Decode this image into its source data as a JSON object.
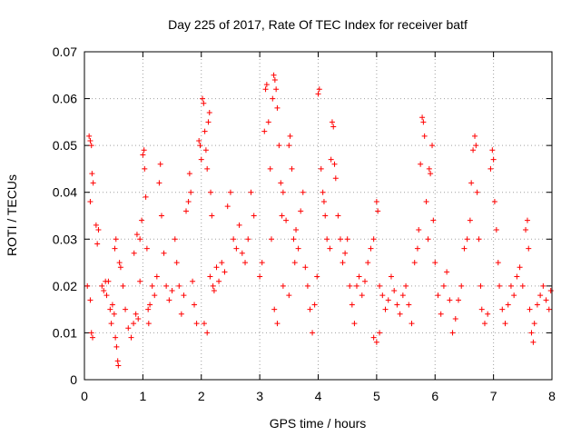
{
  "chart_data": {
    "type": "scatter",
    "title": "Day 225 of 2017, Rate Of TEC Index for receiver batf",
    "xlabel": "GPS time / hours",
    "ylabel": "ROTI / TECUs",
    "xlim": [
      0,
      8
    ],
    "ylim": [
      0,
      0.07
    ],
    "x_ticks": [
      "0",
      "1",
      "2",
      "3",
      "4",
      "5",
      "6",
      "7",
      "8"
    ],
    "y_ticks": [
      "0",
      "0.01",
      "0.02",
      "0.03",
      "0.04",
      "0.05",
      "0.06",
      "0.07"
    ],
    "grid": true,
    "marker": "plus",
    "color": "#ff0000",
    "series": [
      {
        "points": [
          [
            0.08,
            0.052
          ],
          [
            0.1,
            0.051
          ],
          [
            0.12,
            0.05
          ],
          [
            0.13,
            0.044
          ],
          [
            0.15,
            0.042
          ],
          [
            0.05,
            0.02
          ],
          [
            0.1,
            0.017
          ],
          [
            0.12,
            0.01
          ],
          [
            0.14,
            0.009
          ],
          [
            0.2,
            0.033
          ],
          [
            0.22,
            0.029
          ],
          [
            0.24,
            0.032
          ],
          [
            0.1,
            0.038
          ],
          [
            0.3,
            0.02
          ],
          [
            0.33,
            0.019
          ],
          [
            0.36,
            0.021
          ],
          [
            0.38,
            0.018
          ],
          [
            0.41,
            0.021
          ],
          [
            0.44,
            0.015
          ],
          [
            0.46,
            0.012
          ],
          [
            0.48,
            0.016
          ],
          [
            0.51,
            0.014
          ],
          [
            0.53,
            0.009
          ],
          [
            0.55,
            0.007
          ],
          [
            0.57,
            0.004
          ],
          [
            0.58,
            0.003
          ],
          [
            0.52,
            0.028
          ],
          [
            0.54,
            0.03
          ],
          [
            0.6,
            0.025
          ],
          [
            0.62,
            0.024
          ],
          [
            0.66,
            0.02
          ],
          [
            0.7,
            0.015
          ],
          [
            0.75,
            0.011
          ],
          [
            0.8,
            0.009
          ],
          [
            0.84,
            0.012
          ],
          [
            0.88,
            0.014
          ],
          [
            0.92,
            0.013
          ],
          [
            0.95,
            0.021
          ],
          [
            0.98,
            0.034
          ],
          [
            1.0,
            0.048
          ],
          [
            1.02,
            0.049
          ],
          [
            1.03,
            0.045
          ],
          [
            1.05,
            0.039
          ],
          [
            1.07,
            0.028
          ],
          [
            1.09,
            0.015
          ],
          [
            1.1,
            0.012
          ],
          [
            0.85,
            0.027
          ],
          [
            0.9,
            0.031
          ],
          [
            0.95,
            0.03
          ],
          [
            1.12,
            0.016
          ],
          [
            1.16,
            0.02
          ],
          [
            1.2,
            0.018
          ],
          [
            1.24,
            0.022
          ],
          [
            1.28,
            0.042
          ],
          [
            1.3,
            0.046
          ],
          [
            1.32,
            0.035
          ],
          [
            1.36,
            0.027
          ],
          [
            1.4,
            0.02
          ],
          [
            1.45,
            0.017
          ],
          [
            1.5,
            0.019
          ],
          [
            1.55,
            0.03
          ],
          [
            1.58,
            0.025
          ],
          [
            1.62,
            0.02
          ],
          [
            1.66,
            0.014
          ],
          [
            1.7,
            0.018
          ],
          [
            1.74,
            0.036
          ],
          [
            1.78,
            0.038
          ],
          [
            1.8,
            0.044
          ],
          [
            1.82,
            0.04
          ],
          [
            1.85,
            0.021
          ],
          [
            1.88,
            0.016
          ],
          [
            1.92,
            0.012
          ],
          [
            1.96,
            0.051
          ],
          [
            1.98,
            0.05
          ],
          [
            2.0,
            0.047
          ],
          [
            2.02,
            0.06
          ],
          [
            2.04,
            0.059
          ],
          [
            2.06,
            0.053
          ],
          [
            2.08,
            0.049
          ],
          [
            2.1,
            0.045
          ],
          [
            2.12,
            0.055
          ],
          [
            2.14,
            0.057
          ],
          [
            2.16,
            0.04
          ],
          [
            2.18,
            0.035
          ],
          [
            2.2,
            0.02
          ],
          [
            2.05,
            0.012
          ],
          [
            2.1,
            0.01
          ],
          [
            2.15,
            0.022
          ],
          [
            2.22,
            0.019
          ],
          [
            2.26,
            0.024
          ],
          [
            2.3,
            0.021
          ],
          [
            2.35,
            0.025
          ],
          [
            2.4,
            0.023
          ],
          [
            2.45,
            0.037
          ],
          [
            2.5,
            0.04
          ],
          [
            2.55,
            0.03
          ],
          [
            2.6,
            0.028
          ],
          [
            2.65,
            0.033
          ],
          [
            2.7,
            0.027
          ],
          [
            2.75,
            0.025
          ],
          [
            2.8,
            0.03
          ],
          [
            2.85,
            0.04
          ],
          [
            2.9,
            0.035
          ],
          [
            3.0,
            0.022
          ],
          [
            3.04,
            0.025
          ],
          [
            3.08,
            0.053
          ],
          [
            3.1,
            0.062
          ],
          [
            3.12,
            0.063
          ],
          [
            3.15,
            0.055
          ],
          [
            3.18,
            0.045
          ],
          [
            3.2,
            0.03
          ],
          [
            3.22,
            0.06
          ],
          [
            3.24,
            0.065
          ],
          [
            3.26,
            0.064
          ],
          [
            3.28,
            0.062
          ],
          [
            3.3,
            0.058
          ],
          [
            3.33,
            0.05
          ],
          [
            3.36,
            0.042
          ],
          [
            3.38,
            0.035
          ],
          [
            3.4,
            0.04
          ],
          [
            3.45,
            0.034
          ],
          [
            3.5,
            0.05
          ],
          [
            3.52,
            0.052
          ],
          [
            3.55,
            0.045
          ],
          [
            3.58,
            0.03
          ],
          [
            3.6,
            0.025
          ],
          [
            3.25,
            0.015
          ],
          [
            3.3,
            0.012
          ],
          [
            3.4,
            0.02
          ],
          [
            3.5,
            0.018
          ],
          [
            3.62,
            0.032
          ],
          [
            3.66,
            0.028
          ],
          [
            3.7,
            0.036
          ],
          [
            3.74,
            0.04
          ],
          [
            3.78,
            0.024
          ],
          [
            3.82,
            0.02
          ],
          [
            3.86,
            0.015
          ],
          [
            3.9,
            0.01
          ],
          [
            3.94,
            0.016
          ],
          [
            3.98,
            0.022
          ],
          [
            4.0,
            0.061
          ],
          [
            4.02,
            0.062
          ],
          [
            4.05,
            0.045
          ],
          [
            4.08,
            0.04
          ],
          [
            4.1,
            0.038
          ],
          [
            4.12,
            0.035
          ],
          [
            4.15,
            0.03
          ],
          [
            4.2,
            0.028
          ],
          [
            4.22,
            0.047
          ],
          [
            4.24,
            0.055
          ],
          [
            4.26,
            0.054
          ],
          [
            4.28,
            0.046
          ],
          [
            4.3,
            0.043
          ],
          [
            4.34,
            0.035
          ],
          [
            4.38,
            0.03
          ],
          [
            4.42,
            0.025
          ],
          [
            4.46,
            0.027
          ],
          [
            4.5,
            0.03
          ],
          [
            4.54,
            0.02
          ],
          [
            4.58,
            0.016
          ],
          [
            4.62,
            0.012
          ],
          [
            4.66,
            0.02
          ],
          [
            4.7,
            0.022
          ],
          [
            4.75,
            0.018
          ],
          [
            4.8,
            0.021
          ],
          [
            4.85,
            0.025
          ],
          [
            4.9,
            0.028
          ],
          [
            4.95,
            0.03
          ],
          [
            5.0,
            0.038
          ],
          [
            5.02,
            0.036
          ],
          [
            5.05,
            0.02
          ],
          [
            5.1,
            0.018
          ],
          [
            5.15,
            0.015
          ],
          [
            4.95,
            0.009
          ],
          [
            5.0,
            0.008
          ],
          [
            5.05,
            0.01
          ],
          [
            5.2,
            0.017
          ],
          [
            5.25,
            0.022
          ],
          [
            5.3,
            0.019
          ],
          [
            5.35,
            0.016
          ],
          [
            5.4,
            0.014
          ],
          [
            5.45,
            0.018
          ],
          [
            5.5,
            0.02
          ],
          [
            5.55,
            0.016
          ],
          [
            5.6,
            0.012
          ],
          [
            5.65,
            0.025
          ],
          [
            5.7,
            0.028
          ],
          [
            5.72,
            0.032
          ],
          [
            5.75,
            0.046
          ],
          [
            5.78,
            0.056
          ],
          [
            5.8,
            0.055
          ],
          [
            5.82,
            0.052
          ],
          [
            5.85,
            0.038
          ],
          [
            5.88,
            0.03
          ],
          [
            5.9,
            0.045
          ],
          [
            5.92,
            0.044
          ],
          [
            5.95,
            0.05
          ],
          [
            5.97,
            0.034
          ],
          [
            6.0,
            0.025
          ],
          [
            6.05,
            0.018
          ],
          [
            6.1,
            0.014
          ],
          [
            6.15,
            0.02
          ],
          [
            6.2,
            0.023
          ],
          [
            6.25,
            0.017
          ],
          [
            6.3,
            0.01
          ],
          [
            6.35,
            0.013
          ],
          [
            6.4,
            0.017
          ],
          [
            6.45,
            0.02
          ],
          [
            6.5,
            0.028
          ],
          [
            6.55,
            0.03
          ],
          [
            6.6,
            0.034
          ],
          [
            6.62,
            0.042
          ],
          [
            6.65,
            0.049
          ],
          [
            6.68,
            0.052
          ],
          [
            6.7,
            0.05
          ],
          [
            6.72,
            0.04
          ],
          [
            6.75,
            0.03
          ],
          [
            6.78,
            0.02
          ],
          [
            6.8,
            0.015
          ],
          [
            6.85,
            0.012
          ],
          [
            6.9,
            0.014
          ],
          [
            6.95,
            0.045
          ],
          [
            6.98,
            0.049
          ],
          [
            7.0,
            0.047
          ],
          [
            7.02,
            0.038
          ],
          [
            7.05,
            0.032
          ],
          [
            7.08,
            0.025
          ],
          [
            7.1,
            0.02
          ],
          [
            7.15,
            0.015
          ],
          [
            7.2,
            0.012
          ],
          [
            7.25,
            0.016
          ],
          [
            7.3,
            0.02
          ],
          [
            7.35,
            0.018
          ],
          [
            7.4,
            0.022
          ],
          [
            7.45,
            0.024
          ],
          [
            7.5,
            0.02
          ],
          [
            7.55,
            0.032
          ],
          [
            7.58,
            0.034
          ],
          [
            7.6,
            0.028
          ],
          [
            7.62,
            0.015
          ],
          [
            7.65,
            0.01
          ],
          [
            7.68,
            0.008
          ],
          [
            7.7,
            0.012
          ],
          [
            7.75,
            0.016
          ],
          [
            7.8,
            0.018
          ],
          [
            7.85,
            0.02
          ],
          [
            7.9,
            0.017
          ],
          [
            7.95,
            0.015
          ],
          [
            7.98,
            0.019
          ]
        ]
      }
    ]
  }
}
